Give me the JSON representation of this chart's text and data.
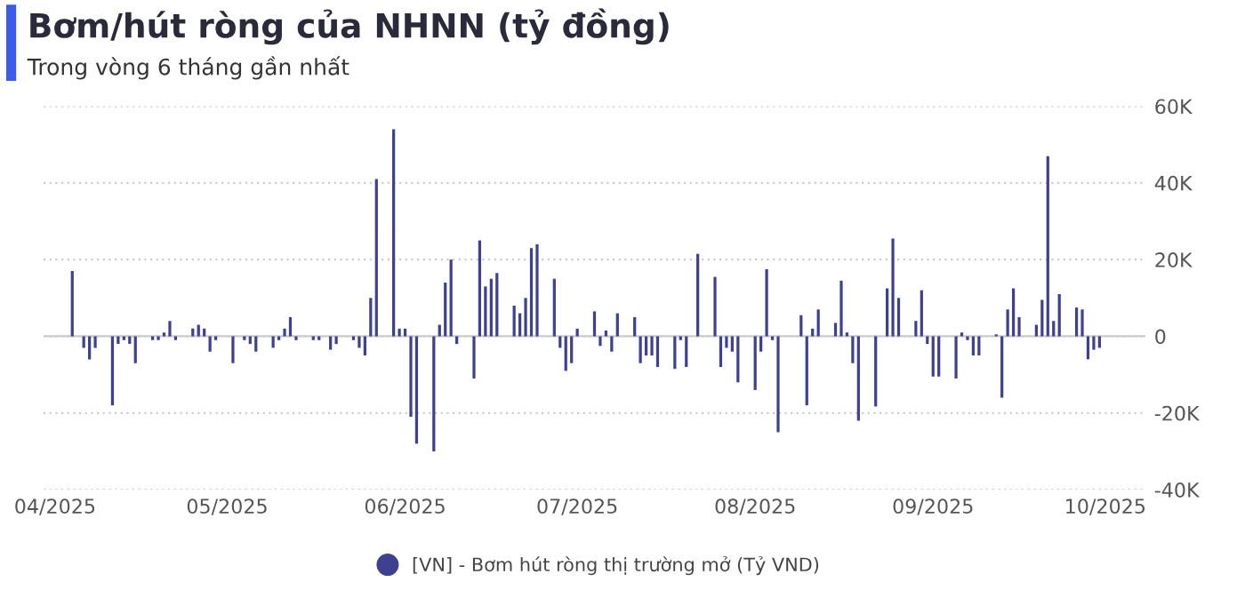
{
  "chart_data": {
    "type": "bar",
    "title": "Bơm/hút ròng của NHNN (tỷ đồng)",
    "subtitle": "Trong vòng 6 tháng gần nhất",
    "x": [
      "2025-04-04",
      "2025-04-06",
      "2025-04-07",
      "2025-04-08",
      "2025-04-11",
      "2025-04-12",
      "2025-04-13",
      "2025-04-14",
      "2025-04-15",
      "2025-04-18",
      "2025-04-19",
      "2025-04-20",
      "2025-04-21",
      "2025-04-22",
      "2025-04-25",
      "2025-04-26",
      "2025-04-27",
      "2025-04-28",
      "2025-04-29",
      "2025-05-02",
      "2025-05-04",
      "2025-05-05",
      "2025-05-06",
      "2025-05-09",
      "2025-05-10",
      "2025-05-11",
      "2025-05-12",
      "2025-05-13",
      "2025-05-16",
      "2025-05-17",
      "2025-05-19",
      "2025-05-20",
      "2025-05-23",
      "2025-05-24",
      "2025-05-25",
      "2025-05-26",
      "2025-05-27",
      "2025-05-30",
      "2025-05-31",
      "2025-06-01",
      "2025-06-02",
      "2025-06-03",
      "2025-06-06",
      "2025-06-07",
      "2025-06-08",
      "2025-06-09",
      "2025-06-10",
      "2025-06-13",
      "2025-06-14",
      "2025-06-15",
      "2025-06-16",
      "2025-06-17",
      "2025-06-20",
      "2025-06-21",
      "2025-06-22",
      "2025-06-23",
      "2025-06-24",
      "2025-06-27",
      "2025-06-28",
      "2025-06-29",
      "2025-06-30",
      "2025-07-01",
      "2025-07-04",
      "2025-07-05",
      "2025-07-06",
      "2025-07-07",
      "2025-07-08",
      "2025-07-11",
      "2025-07-12",
      "2025-07-13",
      "2025-07-14",
      "2025-07-15",
      "2025-07-18",
      "2025-07-19",
      "2025-07-20",
      "2025-07-22",
      "2025-07-25",
      "2025-07-26",
      "2025-07-27",
      "2025-07-28",
      "2025-07-29",
      "2025-08-01",
      "2025-08-02",
      "2025-08-03",
      "2025-08-04",
      "2025-08-05",
      "2025-08-09",
      "2025-08-10",
      "2025-08-11",
      "2025-08-12",
      "2025-08-15",
      "2025-08-16",
      "2025-08-17",
      "2025-08-18",
      "2025-08-19",
      "2025-08-22",
      "2025-08-24",
      "2025-08-25",
      "2025-08-26",
      "2025-08-29",
      "2025-08-30",
      "2025-08-31",
      "2025-09-01",
      "2025-09-02",
      "2025-09-05",
      "2025-09-06",
      "2025-09-07",
      "2025-09-08",
      "2025-09-09",
      "2025-09-12",
      "2025-09-13",
      "2025-09-14",
      "2025-09-15",
      "2025-09-16",
      "2025-09-19",
      "2025-09-20",
      "2025-09-21",
      "2025-09-22",
      "2025-09-23",
      "2025-09-26",
      "2025-09-27",
      "2025-09-28",
      "2025-09-29",
      "2025-09-30"
    ],
    "series": [
      {
        "name": "[VN] - Bơm hút ròng thị trường mở (Tỷ VND)",
        "color": "#3d4190",
        "values": [
          17000,
          -3000,
          -6000,
          -3000,
          -18000,
          -2000,
          -1000,
          -2000,
          -7000,
          -1000,
          -1000,
          1000,
          4000,
          -1000,
          2000,
          3000,
          2000,
          -4000,
          -1000,
          -7000,
          -1000,
          -2000,
          -4000,
          -3000,
          -1000,
          2000,
          5000,
          -1000,
          -1000,
          -1000,
          -3500,
          -2000,
          -1000,
          -3000,
          -5000,
          10000,
          41000,
          54000,
          2000,
          2000,
          -21000,
          -28000,
          -30000,
          3000,
          14000,
          20000,
          -2000,
          -11000,
          25000,
          13000,
          15000,
          16500,
          8000,
          6000,
          10000,
          23000,
          24000,
          15000,
          -3000,
          -9000,
          -7000,
          2000,
          6500,
          -2500,
          1500,
          -4000,
          6000,
          5000,
          -7000,
          -5000,
          -5000,
          -8000,
          -8500,
          -1000,
          -8000,
          21500,
          15500,
          -8000,
          -3000,
          -4000,
          -12000,
          -14000,
          -4000,
          17500,
          -1000,
          -25000,
          5500,
          -18000,
          2000,
          7000,
          3500,
          14500,
          1000,
          -7000,
          -22000,
          -18300,
          12500,
          25500,
          10000,
          4000,
          12000,
          -2000,
          -10500,
          -10500,
          -11000,
          1000,
          -1000,
          -5000,
          -5000,
          500,
          -16000,
          7000,
          12500,
          5000,
          3000,
          9500,
          47000,
          4000,
          11000,
          7500,
          7000,
          -6000,
          -3500,
          -3000
        ]
      }
    ],
    "xlim": [
      "2025-03-30",
      "2025-10-08"
    ],
    "xticks": [
      {
        "value": "2025-04-01",
        "label": "04/2025"
      },
      {
        "value": "2025-05-01",
        "label": "05/2025"
      },
      {
        "value": "2025-06-01",
        "label": "06/2025"
      },
      {
        "value": "2025-07-01",
        "label": "07/2025"
      },
      {
        "value": "2025-08-01",
        "label": "08/2025"
      },
      {
        "value": "2025-09-01",
        "label": "09/2025"
      },
      {
        "value": "2025-10-01",
        "label": "10/2025"
      }
    ],
    "ylim": [
      -40000,
      60000
    ],
    "yticks": [
      {
        "value": -40000,
        "label": "-40K"
      },
      {
        "value": -20000,
        "label": "-20K"
      },
      {
        "value": 0,
        "label": "0"
      },
      {
        "value": 20000,
        "label": "20K"
      },
      {
        "value": 40000,
        "label": "40K"
      },
      {
        "value": 60000,
        "label": "60K"
      }
    ],
    "grid": "y",
    "legend": "bottom"
  }
}
